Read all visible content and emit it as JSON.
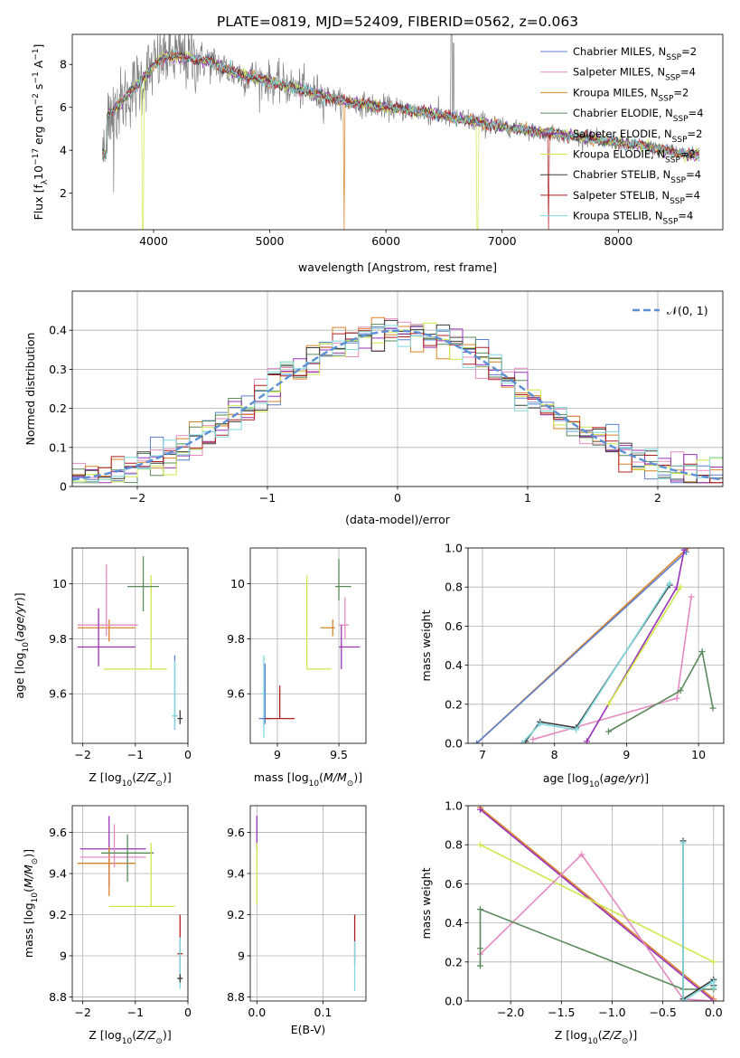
{
  "figure_title": "PLATE=0819, MJD=52409, FIBERID=0562, z=0.063",
  "colors": {
    "Chabrier MILES": "#5b7fcf",
    "Salpeter MILES": "#e58ac0",
    "Kroupa MILES": "#d9822b",
    "Chabrier ELODIE": "#5a8a5a",
    "Salpeter ELODIE": "#9a32b8",
    "Kroupa ELODIE": "#cde94a",
    "Chabrier STELIB": "#3c3c3c",
    "Salpeter STELIB": "#b02020",
    "Kroupa STELIB": "#7ed8de",
    "data": "#808080",
    "normal": "#5b8fd6"
  },
  "chart_data": [
    {
      "id": "spectrum",
      "type": "line",
      "title": "PLATE=0819, MJD=52409, FIBERID=0562, z=0.063",
      "xlabel": "wavelength [Angstrom, rest frame]",
      "ylabel": "Flux [f_λ 10^-17 erg cm^-2 s^-1 A^-1]",
      "xlim": [
        3300,
        8900
      ],
      "ylim": [
        0.3,
        9.4
      ],
      "xticks": [
        4000,
        5000,
        6000,
        7000,
        8000
      ],
      "yticks": [
        2,
        4,
        6,
        8
      ],
      "legend_position": "top-right",
      "legend": [
        {
          "name": "Chabrier MILES",
          "nssp": "N_SSP=2"
        },
        {
          "name": "Salpeter MILES",
          "nssp": "N_SSP=4"
        },
        {
          "name": "Kroupa MILES",
          "nssp": "N_SSP=2"
        },
        {
          "name": "Chabrier ELODIE",
          "nssp": "N_SSP=4"
        },
        {
          "name": "Salpeter ELODIE",
          "nssp": "N_SSP=2"
        },
        {
          "name": "Kroupa ELODIE",
          "nssp": "N_SSP=2"
        },
        {
          "name": "Chabrier STELIB",
          "nssp": "N_SSP=4"
        },
        {
          "name": "Salpeter STELIB",
          "nssp": "N_SSP=4"
        },
        {
          "name": "Kroupa STELIB",
          "nssp": "N_SSP=4"
        }
      ],
      "continuum": [
        [
          3600,
          5.6
        ],
        [
          3700,
          6.1
        ],
        [
          3800,
          6.7
        ],
        [
          3900,
          7.3
        ],
        [
          4000,
          7.9
        ],
        [
          4100,
          8.4
        ],
        [
          4300,
          8.3
        ],
        [
          4500,
          8.1
        ],
        [
          4700,
          7.6
        ],
        [
          5000,
          7.2
        ],
        [
          5300,
          6.8
        ],
        [
          5600,
          6.3
        ],
        [
          6000,
          6.0
        ],
        [
          6300,
          5.8
        ],
        [
          6600,
          5.5
        ],
        [
          7000,
          5.1
        ],
        [
          7400,
          4.8
        ],
        [
          7800,
          4.5
        ],
        [
          8200,
          4.2
        ],
        [
          8600,
          3.8
        ]
      ]
    },
    {
      "id": "residuals",
      "type": "line",
      "xlabel": "(data-model)/error",
      "ylabel": "Normed distribution",
      "xlim": [
        -2.5,
        2.5
      ],
      "ylim": [
        0,
        0.5
      ],
      "xticks": [
        -2,
        -1,
        0,
        1,
        2
      ],
      "yticks": [
        0.0,
        0.1,
        0.2,
        0.3,
        0.4
      ],
      "legend_position": "top-right",
      "normal_label": "𝒩(0, 1)",
      "bin_width": 0.1
    },
    {
      "id": "age_vs_Z",
      "type": "scatter",
      "xlabel": "Z [log10(Z/Z⊙)]",
      "ylabel": "age [log10(age/yr)]",
      "xlim": [
        -2.2,
        0
      ],
      "ylim": [
        9.42,
        10.13
      ],
      "xticks": [
        -2,
        -1,
        0
      ],
      "yticks": [
        9.6,
        9.8,
        10.0
      ],
      "points": [
        {
          "model": "Kroupa MILES",
          "x": -1.5,
          "xerr": [
            0.6,
            0.5
          ],
          "y": 9.84,
          "yerr": [
            0.05,
            0.03
          ]
        },
        {
          "model": "Salpeter MILES",
          "x": -1.55,
          "xerr": [
            0.55,
            0.6
          ],
          "y": 9.85,
          "yerr": [
            0.04,
            0.22
          ]
        },
        {
          "model": "Salpeter ELODIE",
          "x": -1.7,
          "xerr": [
            0.4,
            0.7
          ],
          "y": 9.77,
          "yerr": [
            0.07,
            0.14
          ]
        },
        {
          "model": "Kroupa ELODIE",
          "x": -0.7,
          "xerr": [
            0.9,
            0.3
          ],
          "y": 9.69,
          "yerr": [
            0.0,
            0.34
          ]
        },
        {
          "model": "Chabrier ELODIE",
          "x": -0.85,
          "xerr": [
            0.3,
            0.3
          ],
          "y": 9.99,
          "yerr": [
            0.09,
            0.11
          ]
        },
        {
          "model": "Chabrier MILES",
          "x": -0.25,
          "xerr": [
            0.05,
            0.05
          ],
          "y": 9.52,
          "yerr": [
            0.05,
            0.22
          ]
        },
        {
          "model": "Kroupa STELIB",
          "x": -0.25,
          "xerr": [
            0.05,
            0.05
          ],
          "y": 9.52,
          "yerr": [
            0.05,
            0.2
          ]
        },
        {
          "model": "Chabrier STELIB",
          "x": -0.15,
          "xerr": [
            0.05,
            0.05
          ],
          "y": 9.51,
          "yerr": [
            0.02,
            0.03
          ]
        }
      ]
    },
    {
      "id": "age_vs_mass",
      "type": "scatter",
      "xlabel": "mass [log10(M/M⊙)]",
      "ylabel": "",
      "xlim": [
        8.78,
        9.72
      ],
      "ylim": [
        9.42,
        10.13
      ],
      "xticks": [
        9.0,
        9.5
      ],
      "yticks": [
        9.6,
        9.8,
        10.0
      ],
      "points": [
        {
          "model": "Kroupa MILES",
          "x": 9.45,
          "xerr": [
            0.1,
            0.02
          ],
          "y": 9.84,
          "yerr": [
            0.03,
            0.03
          ]
        },
        {
          "model": "Salpeter MILES",
          "x": 9.55,
          "xerr": [
            0.05,
            0.03
          ],
          "y": 9.85,
          "yerr": [
            0.05,
            0.1
          ]
        },
        {
          "model": "Salpeter ELODIE",
          "x": 9.52,
          "xerr": [
            0.02,
            0.15
          ],
          "y": 9.77,
          "yerr": [
            0.08,
            0.08
          ]
        },
        {
          "model": "Kroupa ELODIE",
          "x": 9.24,
          "xerr": [
            0.0,
            0.2
          ],
          "y": 9.69,
          "yerr": [
            0.0,
            0.34
          ]
        },
        {
          "model": "Chabrier ELODIE",
          "x": 9.5,
          "xerr": [
            0.03,
            0.1
          ],
          "y": 9.99,
          "yerr": [
            0.05,
            0.1
          ]
        },
        {
          "model": "Kroupa STELIB",
          "x": 8.89,
          "xerr": [
            0.02,
            0.02
          ],
          "y": 9.6,
          "yerr": [
            0.16,
            0.14
          ]
        },
        {
          "model": "Chabrier MILES",
          "x": 8.9,
          "xerr": [
            0.05,
            0.05
          ],
          "y": 9.51,
          "yerr": [
            0.02,
            0.2
          ]
        },
        {
          "model": "Salpeter STELIB",
          "x": 9.02,
          "xerr": [
            0.12,
            0.12
          ],
          "y": 9.51,
          "yerr": [
            0.0,
            0.12
          ]
        }
      ]
    },
    {
      "id": "weight_vs_age",
      "type": "line",
      "xlabel": "age [log10(age/yr)]",
      "ylabel": "mass weight",
      "xlim": [
        6.8,
        10.35
      ],
      "ylim": [
        0,
        1
      ],
      "xticks": [
        7,
        8,
        9,
        10
      ],
      "yticks": [
        0.0,
        0.2,
        0.4,
        0.6,
        0.8,
        1.0
      ],
      "series": [
        {
          "model": "Kroupa MILES",
          "x": [
            6.92,
            9.85
          ],
          "y": [
            0.0,
            1.0
          ]
        },
        {
          "model": "Chabrier MILES",
          "x": [
            6.92,
            9.83
          ],
          "y": [
            0.0,
            0.98
          ]
        },
        {
          "model": "Salpeter MILES",
          "x": [
            7.7,
            9.7,
            9.9
          ],
          "y": [
            0.02,
            0.23,
            0.75
          ]
        },
        {
          "model": "Salpeter ELODIE",
          "x": [
            8.45,
            9.7,
            9.8
          ],
          "y": [
            0.01,
            0.8,
            0.99
          ]
        },
        {
          "model": "Chabrier STELIB",
          "x": [
            7.6,
            7.8,
            8.3,
            9.6
          ],
          "y": [
            0.01,
            0.11,
            0.08,
            0.81
          ]
        },
        {
          "model": "Kroupa STELIB",
          "x": [
            7.55,
            7.8,
            8.3,
            9.6
          ],
          "y": [
            0.0,
            0.1,
            0.07,
            0.82
          ]
        },
        {
          "model": "Kroupa ELODIE",
          "x": [
            8.75,
            9.75
          ],
          "y": [
            0.2,
            0.8
          ]
        },
        {
          "model": "Chabrier ELODIE",
          "x": [
            8.75,
            9.75,
            10.05,
            10.2
          ],
          "y": [
            0.06,
            0.27,
            0.47,
            0.18
          ]
        }
      ]
    },
    {
      "id": "mass_vs_Z",
      "type": "scatter",
      "xlabel": "Z [log10(Z/Z⊙)]",
      "ylabel": "mass [log10(M/M⊙)]",
      "xlim": [
        -2.2,
        0
      ],
      "ylim": [
        8.78,
        9.73
      ],
      "xticks": [
        -2,
        -1,
        0
      ],
      "yticks": [
        8.8,
        9.0,
        9.2,
        9.4,
        9.6
      ],
      "points": [
        {
          "model": "Salpeter ELODIE",
          "x": -1.5,
          "xerr": [
            0.55,
            0.7
          ],
          "y": 9.52,
          "yerr": [
            0.18,
            0.16
          ]
        },
        {
          "model": "Kroupa MILES",
          "x": -1.5,
          "xerr": [
            0.6,
            0.5
          ],
          "y": 9.45,
          "yerr": [
            0.16,
            0.08
          ]
        },
        {
          "model": "Salpeter MILES",
          "x": -1.4,
          "xerr": [
            0.65,
            0.6
          ],
          "y": 9.48,
          "yerr": [
            0.05,
            0.16
          ]
        },
        {
          "model": "Chabrier ELODIE",
          "x": -1.15,
          "xerr": [
            0.5,
            0.5
          ],
          "y": 9.5,
          "yerr": [
            0.14,
            0.09
          ]
        },
        {
          "model": "Kroupa ELODIE",
          "x": -0.7,
          "xerr": [
            0.8,
            0.45
          ],
          "y": 9.24,
          "yerr": [
            0.0,
            0.31
          ]
        },
        {
          "model": "Salpeter STELIB",
          "x": -0.15,
          "xerr": [
            0.05,
            0.05
          ],
          "y": 9.01,
          "yerr": [
            0.12,
            0.19
          ]
        },
        {
          "model": "Kroupa STELIB",
          "x": -0.15,
          "xerr": [
            0.05,
            0.05
          ],
          "y": 8.89,
          "yerr": [
            0.05,
            0.2
          ]
        },
        {
          "model": "Chabrier STELIB",
          "x": -0.15,
          "xerr": [
            0.05,
            0.05
          ],
          "y": 8.89,
          "yerr": [
            0.02,
            0.02
          ]
        }
      ]
    },
    {
      "id": "mass_vs_ebv",
      "type": "scatter",
      "xlabel": "E(B-V)",
      "ylabel": "",
      "xlim": [
        -0.01,
        0.165
      ],
      "ylim": [
        8.78,
        9.73
      ],
      "xticks": [
        0.0,
        0.1
      ],
      "yticks": [
        8.8,
        9.0,
        9.2,
        9.4,
        9.6
      ],
      "points": [
        {
          "model": "Salpeter ELODIE",
          "x": 0.0,
          "y": 9.6,
          "yerr": [
            0.08,
            0.08
          ]
        },
        {
          "model": "Kroupa ELODIE",
          "x": 0.0,
          "y": 9.4,
          "yerr": [
            0.15,
            0.15
          ]
        },
        {
          "model": "Salpeter STELIB",
          "x": 0.148,
          "y": 9.08,
          "yerr": [
            0.12,
            0.12
          ]
        },
        {
          "model": "Kroupa STELIB",
          "x": 0.148,
          "y": 8.95,
          "yerr": [
            0.12,
            0.12
          ]
        }
      ]
    },
    {
      "id": "weight_vs_Z",
      "type": "line",
      "xlabel": "Z [log10(Z/Z⊙)]",
      "ylabel": "mass weight",
      "xlim": [
        -2.42,
        0.1
      ],
      "ylim": [
        0,
        1
      ],
      "xticks": [
        -2.0,
        -1.5,
        -1.0,
        -0.5,
        0.0
      ],
      "yticks": [
        0.0,
        0.2,
        0.4,
        0.6,
        0.8,
        1.0
      ],
      "series": [
        {
          "model": "Kroupa MILES",
          "x": [
            -2.3,
            0.0
          ],
          "y": [
            0.99,
            0.01
          ]
        },
        {
          "model": "Salpeter ELODIE",
          "x": [
            -2.3,
            0.0
          ],
          "y": [
            0.98,
            0.0
          ]
        },
        {
          "model": "Kroupa ELODIE",
          "x": [
            -2.3,
            0.0
          ],
          "y": [
            0.8,
            0.2
          ]
        },
        {
          "model": "Salpeter MILES",
          "x": [
            -2.3,
            -1.3,
            -0.3,
            0.0
          ],
          "y": [
            0.24,
            0.75,
            0.01,
            0.0
          ]
        },
        {
          "model": "Chabrier ELODIE",
          "x": [
            -2.3,
            -2.3,
            -2.3,
            -0.3,
            0.0
          ],
          "y": [
            0.18,
            0.27,
            0.47,
            0.06,
            0.06
          ]
        },
        {
          "model": "Chabrier STELIB",
          "x": [
            -0.3,
            -0.3,
            0.0,
            0.0
          ],
          "y": [
            0.82,
            0.01,
            0.11,
            0.08
          ]
        },
        {
          "model": "Kroupa STELIB",
          "x": [
            -0.3,
            -0.3,
            0.0,
            0.0
          ],
          "y": [
            0.81,
            0.0,
            0.1,
            0.07
          ]
        }
      ]
    }
  ]
}
